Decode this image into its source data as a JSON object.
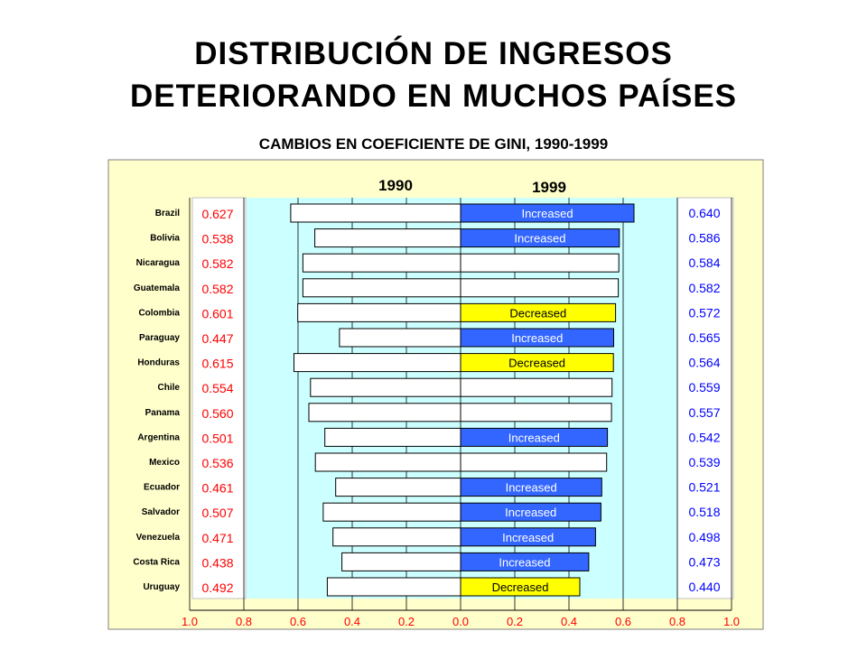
{
  "title_line1": "DISTRIBUCIÓN DE INGRESOS",
  "title_line2": "DETERIORANDO EN MUCHOS PAÍSES",
  "subtitle": "CAMBIOS EN COEFICIENTE DE GINI, 1990-1999",
  "colors": {
    "outer_bg": "#FFFFCC",
    "inner_bg": "#CCFFFF",
    "increased": "#3366FF",
    "decreased": "#FFFF00",
    "neutral": "#FFFFFF",
    "left_value": "#FF0000",
    "right_value": "#0000FF",
    "tick_label": "#FF0000"
  },
  "chart_data": {
    "type": "bar",
    "orientation": "horizontal-back-to-back",
    "series_labels": [
      "1990",
      "1999"
    ],
    "categories": [
      "Brazil",
      "Bolivia",
      "Nicaragua",
      "Guatemala",
      "Colombia",
      "Paraguay",
      "Honduras",
      "Chile",
      "Panama",
      "Argentina",
      "Mexico",
      "Ecuador",
      "Salvador",
      "Venezuela",
      "Costa Rica",
      "Uruguay"
    ],
    "series": [
      {
        "name": "1990",
        "values": [
          0.627,
          0.538,
          0.582,
          0.582,
          0.601,
          0.447,
          0.615,
          0.554,
          0.56,
          0.501,
          0.536,
          0.461,
          0.507,
          0.471,
          0.438,
          0.492
        ]
      },
      {
        "name": "1999",
        "values": [
          0.64,
          0.586,
          0.584,
          0.582,
          0.572,
          0.565,
          0.564,
          0.559,
          0.557,
          0.542,
          0.539,
          0.521,
          0.518,
          0.498,
          0.473,
          0.44
        ]
      }
    ],
    "left_labels": [
      "0.627",
      "0.538",
      "0.582",
      "0.582",
      "0.601",
      "0.447",
      "0.615",
      "0.554",
      "0.560",
      "0.501",
      "0.536",
      "0.461",
      "0.507",
      "0.471",
      "0.438",
      "0.492"
    ],
    "right_labels": [
      "0.640",
      "0.586",
      "0.584",
      "0.582",
      "0.572",
      "0.565",
      "0.564",
      "0.559",
      "0.557",
      "0.542",
      "0.539",
      "0.521",
      "0.518",
      "0.498",
      "0.473",
      "0.440"
    ],
    "change": [
      "Increased",
      "Increased",
      "",
      "",
      "Decreased",
      "Increased",
      "Decreased",
      "",
      "",
      "Increased",
      "",
      "Increased",
      "Increased",
      "Increased",
      "Increased",
      "Decreased"
    ],
    "x_ticks": [
      "1.0",
      "0.8",
      "0.6",
      "0.4",
      "0.2",
      "0.0",
      "0.2",
      "0.4",
      "0.6",
      "0.8",
      "1.0"
    ],
    "xlim": [
      -1.0,
      1.0
    ],
    "grid": true
  }
}
